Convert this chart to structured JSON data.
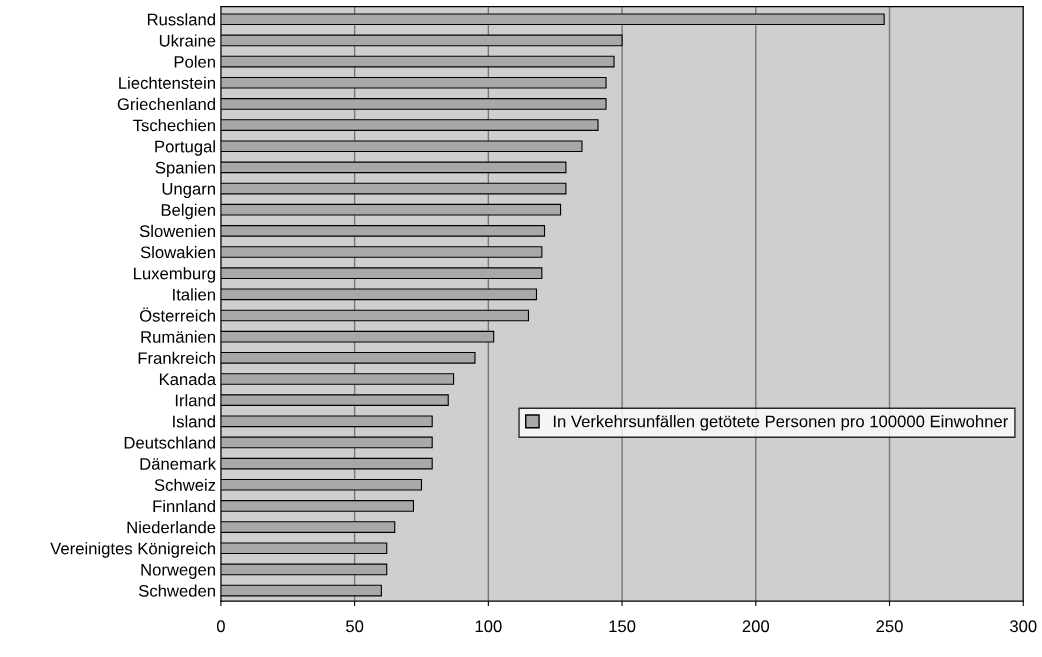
{
  "chart_data": {
    "type": "bar",
    "orientation": "horizontal",
    "categories": [
      "Russland",
      "Ukraine",
      "Polen",
      "Liechtenstein",
      "Griechenland",
      "Tschechien",
      "Portugal",
      "Spanien",
      "Ungarn",
      "Belgien",
      "Slowenien",
      "Slowakien",
      "Luxemburg",
      "Italien",
      "Österreich",
      "Rumänien",
      "Frankreich",
      "Kanada",
      "Irland",
      "Island",
      "Deutschland",
      "Dänemark",
      "Schweiz",
      "Finnland",
      "Niederlande",
      "Vereinigtes Königreich",
      "Norwegen",
      "Schweden"
    ],
    "series": [
      {
        "name": "In Verkehrsunfällen getötete Personen pro 100000 Einwohner",
        "color": "#a8a8a8",
        "values": [
          248,
          150,
          147,
          144,
          144,
          141,
          135,
          129,
          129,
          127,
          121,
          120,
          120,
          118,
          115,
          102,
          95,
          87,
          85,
          79,
          79,
          79,
          75,
          72,
          65,
          62,
          62,
          60
        ]
      }
    ],
    "xlim": [
      0,
      300
    ],
    "xticks": [
      0,
      50,
      100,
      150,
      200,
      250,
      300
    ],
    "grid": "x",
    "legend": "right"
  }
}
